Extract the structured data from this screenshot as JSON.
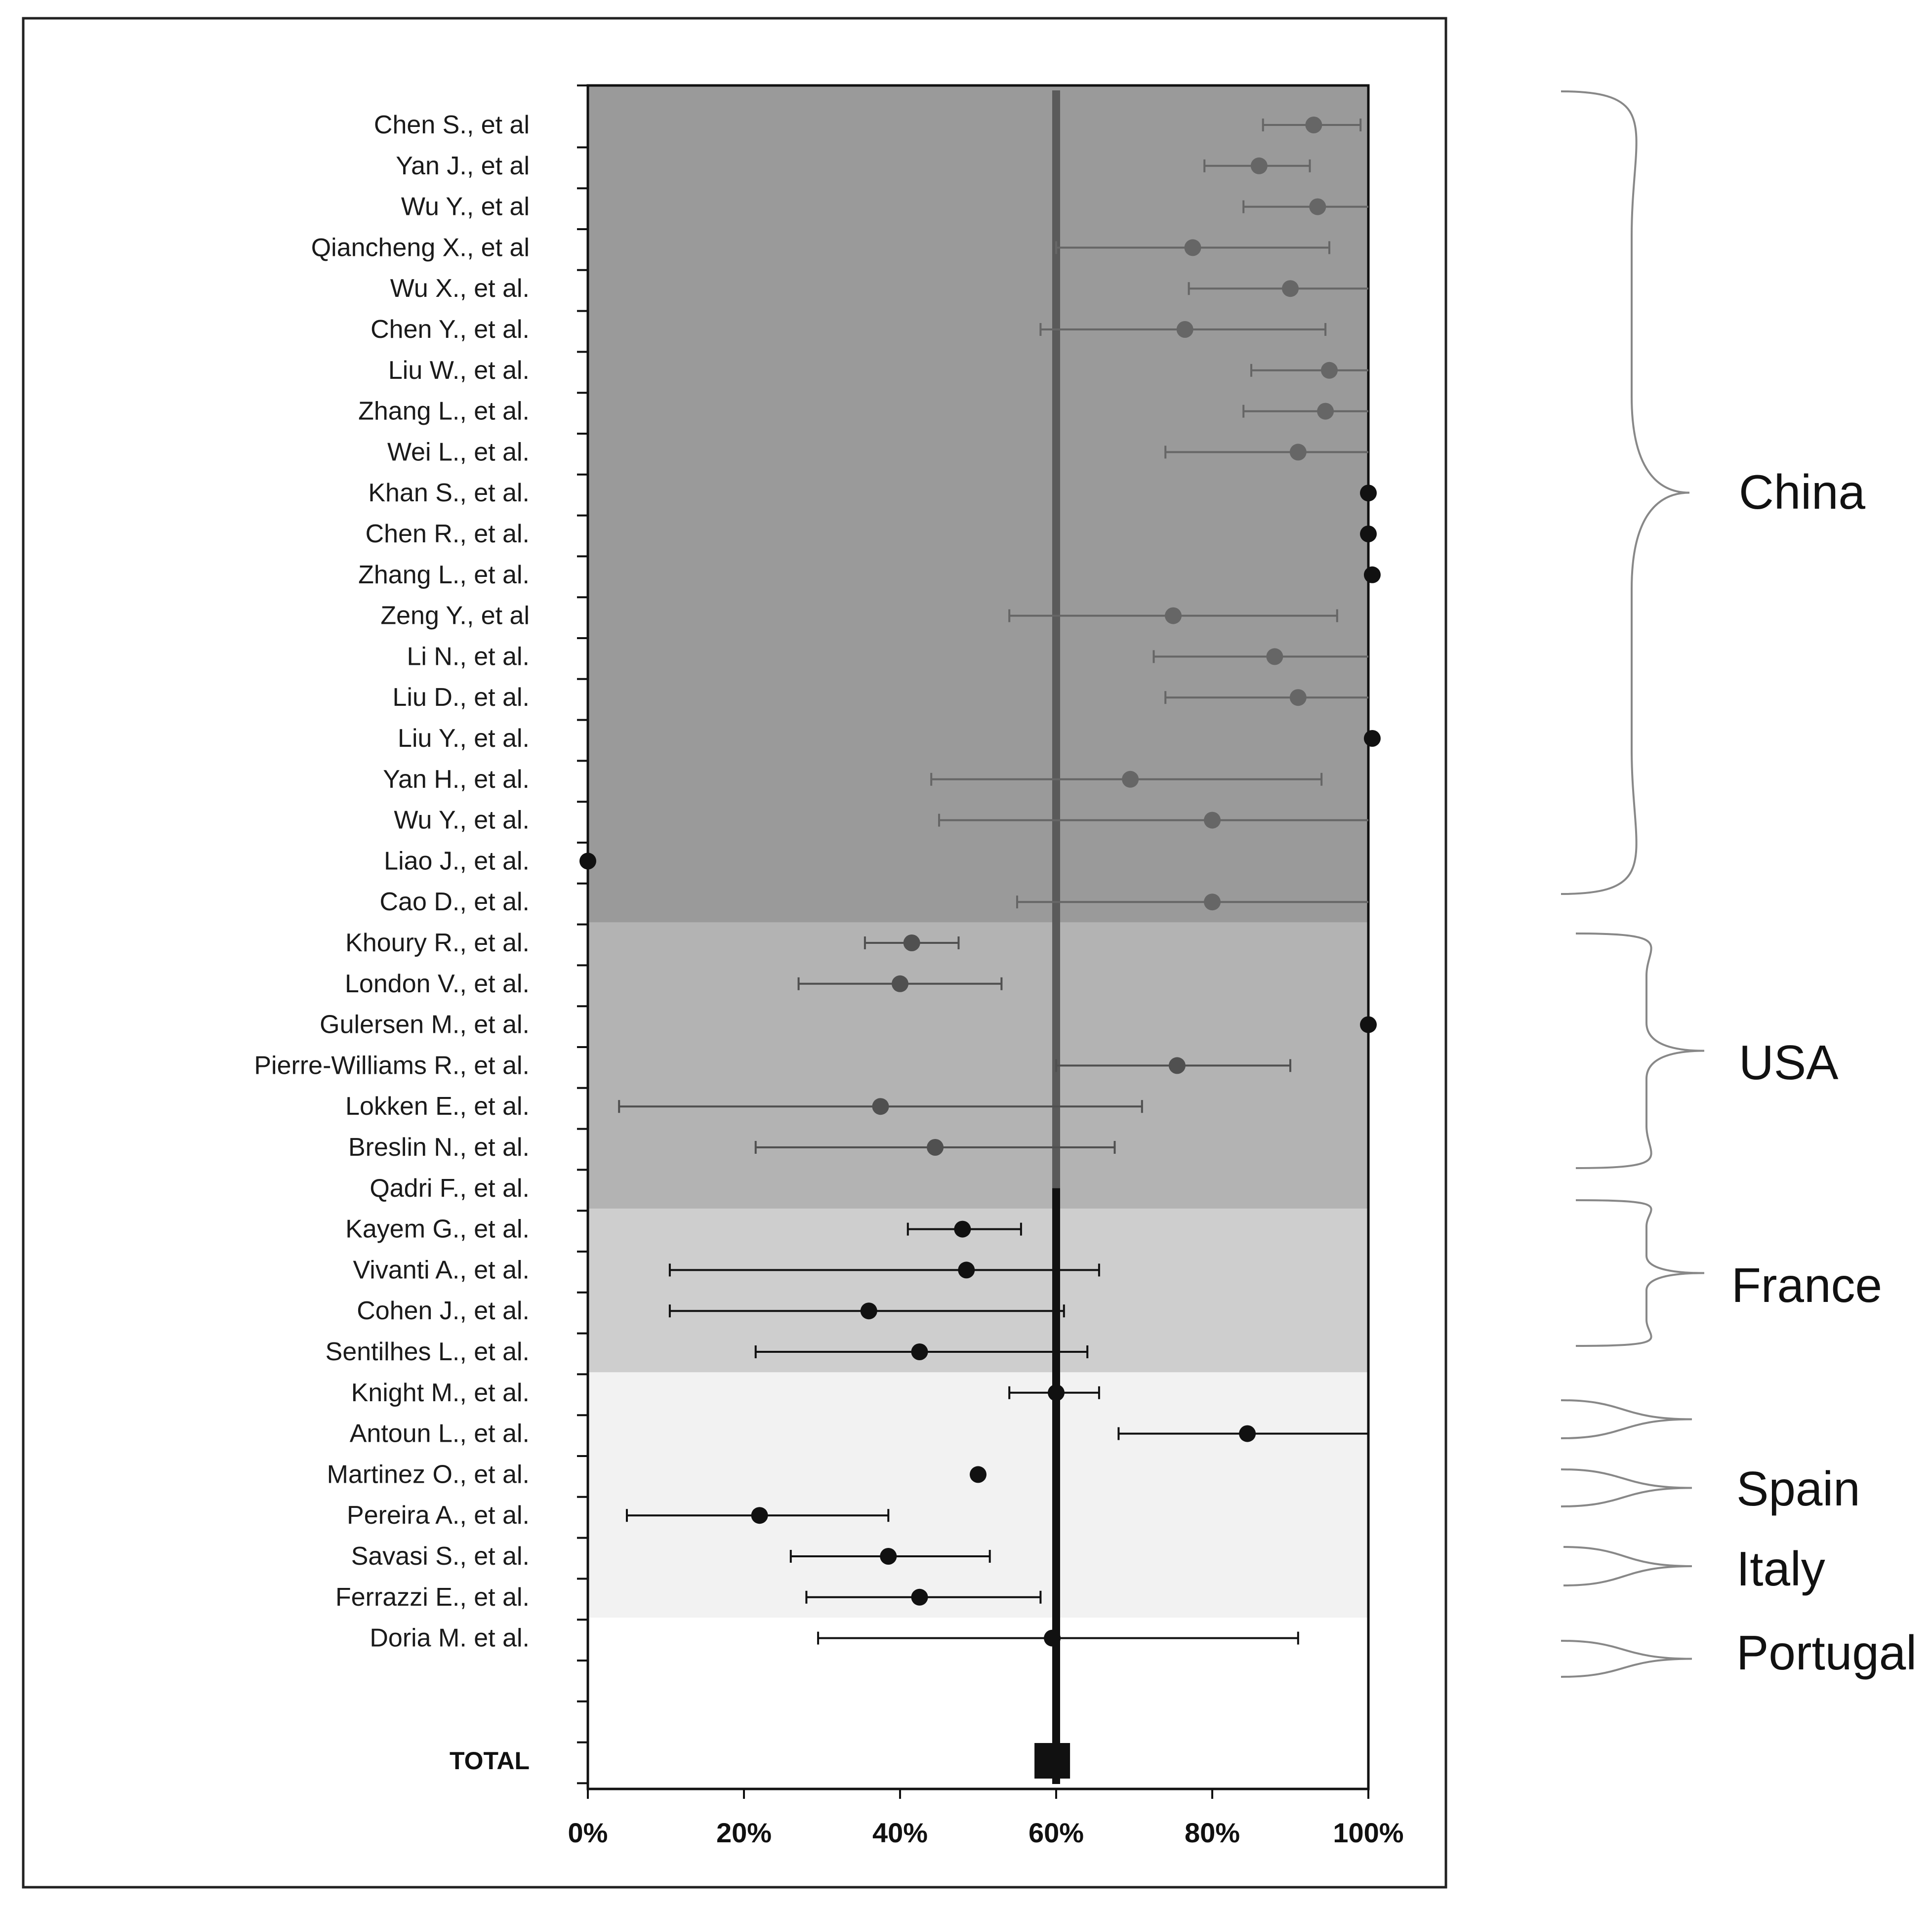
{
  "chart_data": {
    "type": "forest",
    "title": "",
    "xlabel": "",
    "ylabel": "",
    "xlim": [
      0,
      100
    ],
    "x_ticks": [
      "0%",
      "20%",
      "40%",
      "60%",
      "80%",
      "100%"
    ],
    "reference_line": 60,
    "groups": [
      {
        "name": "China",
        "color": "#9a9a9a",
        "first": 0,
        "last": 19
      },
      {
        "name": "USA",
        "color": "#b3b3b3",
        "first": 20,
        "last": 26
      },
      {
        "name": "France",
        "color": "#cecece",
        "first": 27,
        "last": 30
      },
      {
        "name": "Spain",
        "color": "#f2f2f2",
        "first": 31,
        "last": 36
      },
      {
        "name": "Italy",
        "color": "#f2f2f2",
        "first": 31,
        "last": 36
      },
      {
        "name": "Portugal",
        "color": "#ffffff",
        "first": 37,
        "last": 37
      }
    ],
    "country_labels": [
      "China",
      "USA",
      "France",
      "Spain",
      "Italy",
      "Portugal"
    ],
    "studies": [
      {
        "label": "Chen S., et al",
        "est": 93,
        "lo": 86.5,
        "hi": 99
      },
      {
        "label": "Yan J., et al",
        "est": 86,
        "lo": 79,
        "hi": 92.5
      },
      {
        "label": "Wu Y., et al",
        "est": 93.5,
        "lo": 84,
        "hi": 100
      },
      {
        "label": "Qiancheng X., et al",
        "est": 77.5,
        "lo": 60,
        "hi": 95
      },
      {
        "label": "Wu X., et al.",
        "est": 90,
        "lo": 77,
        "hi": 100
      },
      {
        "label": "Chen Y., et al.",
        "est": 76.5,
        "lo": 58,
        "hi": 94.5
      },
      {
        "label": "Liu W., et al.",
        "est": 95,
        "lo": 85,
        "hi": 100
      },
      {
        "label": "Zhang L., et al.",
        "est": 94.5,
        "lo": 84,
        "hi": 100
      },
      {
        "label": "Wei L., et al.",
        "est": 91,
        "lo": 74,
        "hi": 100
      },
      {
        "label": "Khan S., et al.",
        "est": 100,
        "lo": null,
        "hi": null
      },
      {
        "label": "Chen R., et al.",
        "est": 100,
        "lo": null,
        "hi": null
      },
      {
        "label": "Zhang L., et al.",
        "est": 100.5,
        "lo": null,
        "hi": null
      },
      {
        "label": "Zeng Y., et al",
        "est": 75,
        "lo": 54,
        "hi": 96
      },
      {
        "label": "Li N., et al.",
        "est": 88,
        "lo": 72.5,
        "hi": 100
      },
      {
        "label": "Liu D., et al.",
        "est": 91,
        "lo": 74,
        "hi": 100
      },
      {
        "label": "Liu Y., et al.",
        "est": 100.5,
        "lo": null,
        "hi": null
      },
      {
        "label": "Yan H., et al.",
        "est": 69.5,
        "lo": 44,
        "hi": 94
      },
      {
        "label": "Wu Y., et al.",
        "est": 80,
        "lo": 45,
        "hi": 100
      },
      {
        "label": "Liao J., et al.",
        "est": 0,
        "lo": null,
        "hi": null
      },
      {
        "label": "Cao D., et al.",
        "est": 80,
        "lo": 55,
        "hi": 100
      },
      {
        "label": "Khoury R., et al.",
        "est": 41.5,
        "lo": 35.5,
        "hi": 47.5
      },
      {
        "label": "London V., et al.",
        "est": 40,
        "lo": 27,
        "hi": 53
      },
      {
        "label": "Gulersen M., et al.",
        "est": 100,
        "lo": null,
        "hi": null
      },
      {
        "label": "Pierre-Williams R., et al.",
        "est": 75.5,
        "lo": 60,
        "hi": 90
      },
      {
        "label": "Lokken E., et al.",
        "est": 37.5,
        "lo": 4,
        "hi": 71
      },
      {
        "label": "Breslin N., et al.",
        "est": 44.5,
        "lo": 21.5,
        "hi": 67.5
      },
      {
        "label": "Qadri F., et al.",
        "est": null,
        "lo": null,
        "hi": null
      },
      {
        "label": "Kayem G., et al.",
        "est": 48,
        "lo": 41,
        "hi": 55.5
      },
      {
        "label": "Vivanti A., et al.",
        "est": 48.5,
        "lo": 10.5,
        "hi": 65.5
      },
      {
        "label": "Cohen J., et al.",
        "est": 36,
        "lo": 10.5,
        "hi": 61
      },
      {
        "label": "Sentilhes L., et al.",
        "est": 42.5,
        "lo": 21.5,
        "hi": 64
      },
      {
        "label": "Knight M., et al.",
        "est": 60,
        "lo": 54,
        "hi": 65.5
      },
      {
        "label": "Antoun L., et al.",
        "est": 84.5,
        "lo": 68,
        "hi": 100
      },
      {
        "label": "Martinez O., et al.",
        "est": 50,
        "lo": null,
        "hi": null
      },
      {
        "label": "Pereira A., et al.",
        "est": 22,
        "lo": 5,
        "hi": 38.5
      },
      {
        "label": "Savasi S., et al.",
        "est": 38.5,
        "lo": 26,
        "hi": 51.5
      },
      {
        "label": "Ferrazzi E., et al.",
        "est": 42.5,
        "lo": 28,
        "hi": 58
      },
      {
        "label": "Doria M. et al.",
        "est": 59.5,
        "lo": 29.5,
        "hi": 91
      }
    ],
    "total": {
      "label": "TOTAL",
      "est": 59.5
    }
  }
}
